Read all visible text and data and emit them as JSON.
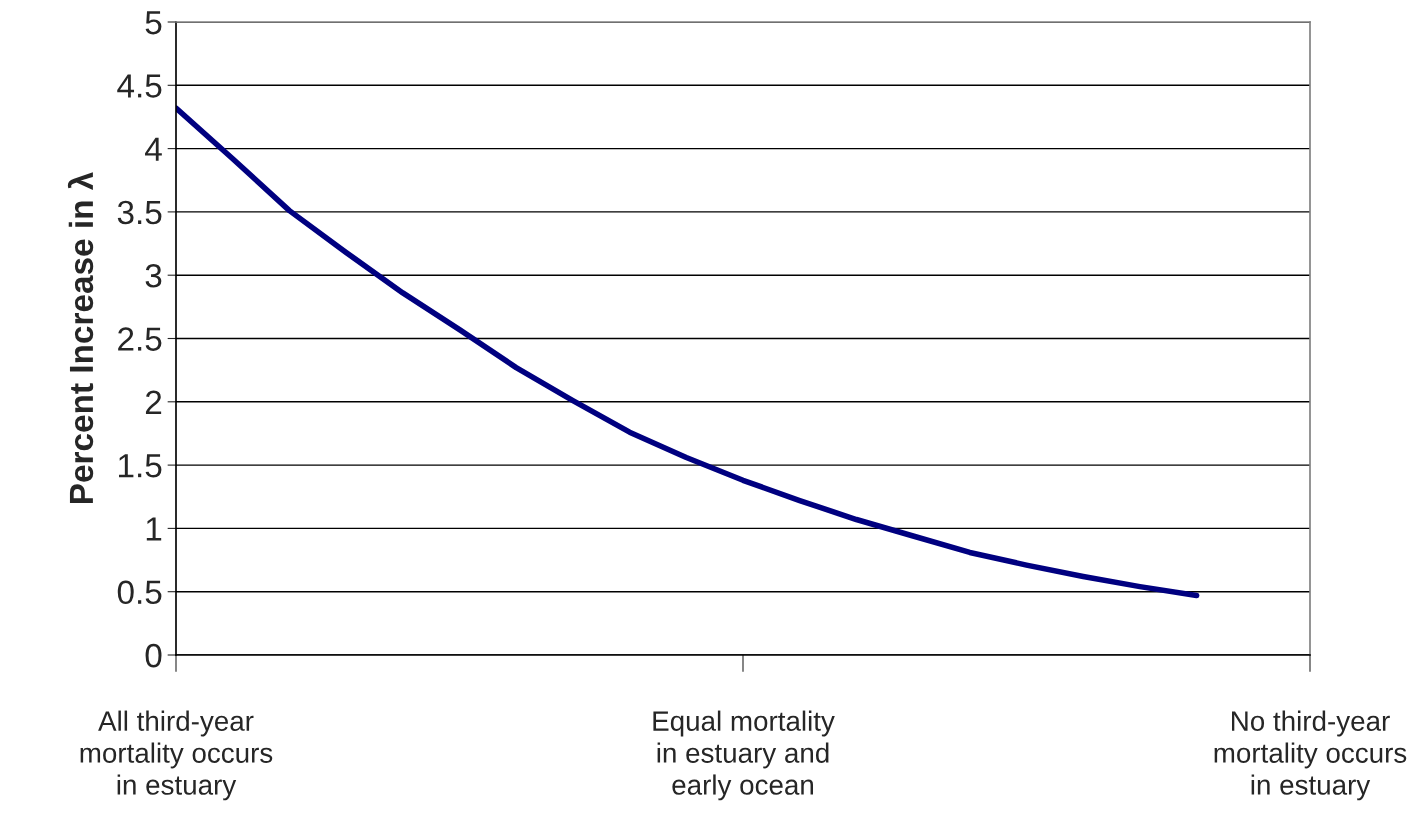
{
  "chart_data": {
    "type": "line",
    "ylabel": "Percent Increase in λ",
    "categories": [
      "All third-year\nmortality occurs\nin estuary",
      null,
      null,
      null,
      null,
      null,
      null,
      null,
      null,
      null,
      "Equal mortality\nin estuary and\nearly ocean",
      null,
      null,
      null,
      null,
      null,
      null,
      null,
      null,
      null,
      "No third-year\nmortality occurs\nin estuary"
    ],
    "series": [
      {
        "color": "#000080",
        "values": [
          4.32,
          3.92,
          3.51,
          3.18,
          2.86,
          2.57,
          2.27,
          2.01,
          1.76,
          1.56,
          1.38,
          1.22,
          1.07,
          0.94,
          0.81,
          0.71,
          0.62,
          0.54,
          0.47,
          null,
          null
        ]
      }
    ],
    "ylim": [
      0,
      5
    ],
    "yticks": [
      0,
      0.5,
      1,
      1.5,
      2,
      2.5,
      3,
      3.5,
      4,
      4.5,
      5
    ],
    "grid": "y",
    "marker": "none",
    "line_style": "solid"
  }
}
